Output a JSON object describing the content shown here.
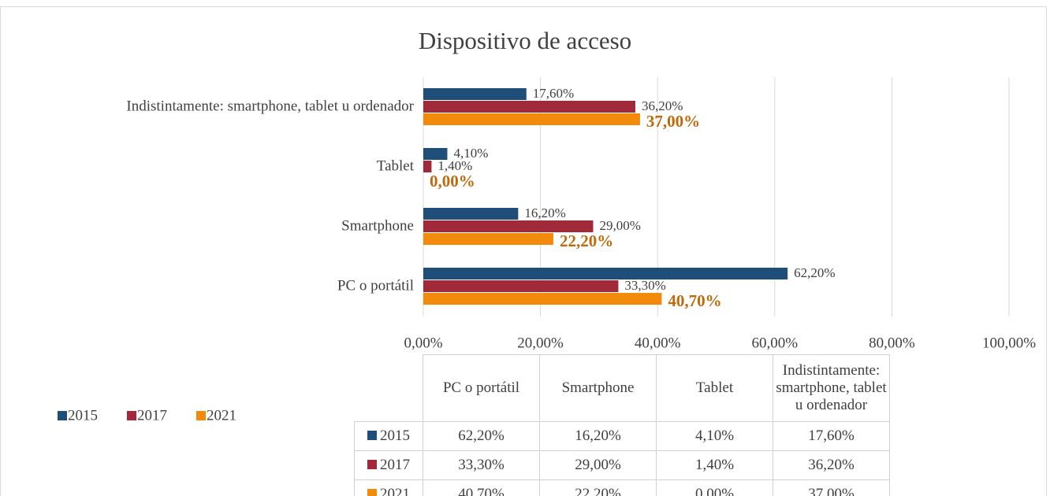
{
  "chart_data": {
    "type": "bar",
    "orientation": "horizontal",
    "title": "Dispositivo de acceso",
    "categories": [
      "PC o portátil",
      "Smartphone",
      "Tablet",
      "Indistintamente: smartphone, tablet u ordenador"
    ],
    "series": [
      {
        "name": "2015",
        "color": "#1f4e79",
        "values": [
          62.2,
          16.2,
          4.1,
          17.6
        ],
        "value_labels": [
          "62,20%",
          "16,20%",
          "4,10%",
          "17,60%"
        ]
      },
      {
        "name": "2017",
        "color": "#a0293a",
        "values": [
          33.3,
          29.0,
          1.4,
          36.2
        ],
        "value_labels": [
          "33,30%",
          "29,00%",
          "1,40%",
          "36,20%"
        ]
      },
      {
        "name": "2021",
        "color": "#f28a0c",
        "values": [
          40.7,
          22.2,
          0.0,
          37.0
        ],
        "value_labels": [
          "40,70%",
          "22,20%",
          "0,00%",
          "37,00%"
        ]
      }
    ],
    "xlim": [
      0,
      100
    ],
    "xticks": [
      {
        "value": 0,
        "label": "0,00%"
      },
      {
        "value": 20,
        "label": "20,00%"
      },
      {
        "value": 40,
        "label": "40,00%"
      },
      {
        "value": 60,
        "label": "60,00%"
      },
      {
        "value": 80,
        "label": "80,00%"
      },
      {
        "value": 100,
        "label": "100,00%"
      }
    ],
    "grid": true,
    "legend": "left",
    "data_table": true
  }
}
